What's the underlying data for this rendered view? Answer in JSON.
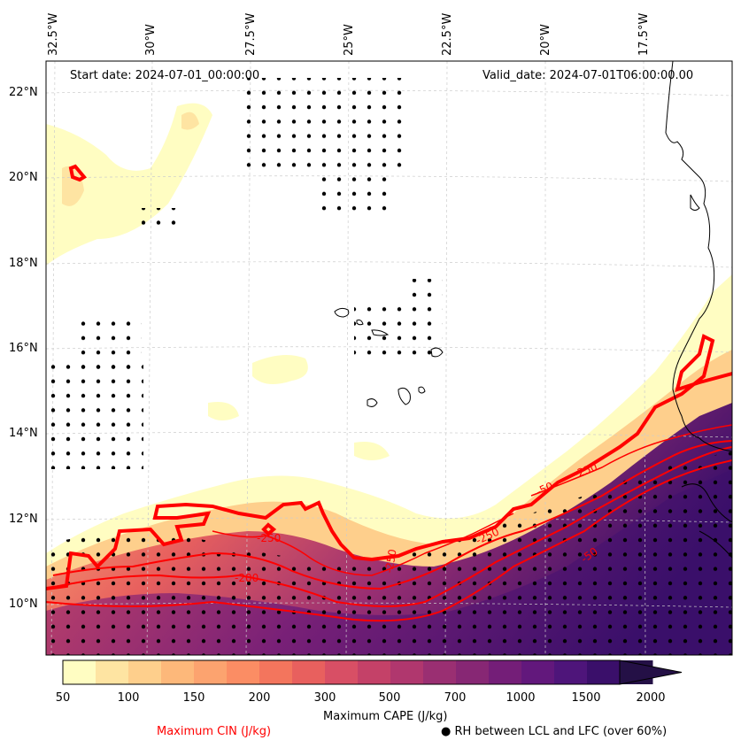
{
  "map": {
    "start_date": "Start date: 2024-07-01_00:00:00",
    "valid_date": "Valid_date: 2024-07-01T06:00:00.00",
    "lon_labels": [
      "32.5°W",
      "30°W",
      "27.5°W",
      "25°W",
      "22.5°W",
      "20°W",
      "17.5°W"
    ],
    "lat_labels": [
      "22°N",
      "20°N",
      "18°N",
      "16°N",
      "14°N",
      "12°N",
      "10°N"
    ],
    "contour_labels": [
      "-250",
      "-200",
      "-250",
      "-250",
      "-250",
      "-50",
      "-50",
      "-50"
    ]
  },
  "colorbar": {
    "title": "Maximum CAPE (J/kg)",
    "ticks": [
      "50",
      "100",
      "150",
      "200",
      "300",
      "500",
      "700",
      "1000",
      "1500",
      "2000"
    ],
    "colors": [
      "#fffdc2",
      "#fee4a2",
      "#fecf8c",
      "#fdb87a",
      "#fca36f",
      "#fb8d64",
      "#f3755d",
      "#e8605e",
      "#d84f65",
      "#c44168",
      "#b0376e",
      "#9a2f72",
      "#872774",
      "#741e78",
      "#62187c",
      "#4e157a",
      "#3a0f6a",
      "#241046"
    ]
  },
  "legend": {
    "cin": "Maximum CIN (J/kg)",
    "cin_color": "#ff0000",
    "rh": "● RH between LCL and LFC (over 60%)"
  }
}
